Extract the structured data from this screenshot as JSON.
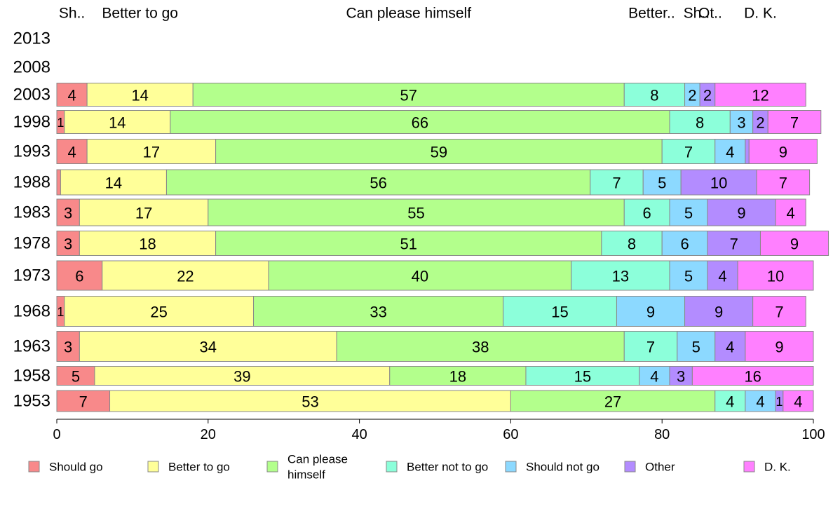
{
  "chart_data": {
    "type": "bar",
    "orientation": "horizontal",
    "stacked": true,
    "categories": [
      "2013",
      "2008",
      "2003",
      "1998",
      "1993",
      "1988",
      "1983",
      "1978",
      "1973",
      "1968",
      "1963",
      "1958",
      "1953"
    ],
    "series": [
      {
        "name": "Should go",
        "color": "#F8898A",
        "values": [
          null,
          null,
          4,
          1,
          4,
          0.5,
          3,
          3,
          6,
          1,
          3,
          5,
          7
        ]
      },
      {
        "name": "Better to go",
        "color": "#FFFF99",
        "values": [
          null,
          null,
          14,
          14,
          17,
          14,
          17,
          18,
          22,
          25,
          34,
          39,
          53
        ]
      },
      {
        "name": "Can please himself",
        "color": "#B3FF8C",
        "values": [
          null,
          null,
          57,
          66,
          59,
          56,
          55,
          51,
          40,
          33,
          38,
          18,
          27
        ]
      },
      {
        "name": "Better not to go",
        "color": "#8CFFDA",
        "values": [
          null,
          null,
          8,
          8,
          7,
          7,
          6,
          8,
          13,
          15,
          7,
          15,
          4
        ]
      },
      {
        "name": "Should not go",
        "color": "#8CD9FF",
        "values": [
          null,
          null,
          2,
          3,
          4,
          5,
          5,
          6,
          5,
          9,
          5,
          4,
          4
        ]
      },
      {
        "name": "Other",
        "color": "#B38CFF",
        "values": [
          null,
          null,
          2,
          2,
          0.5,
          10,
          9,
          7,
          4,
          9,
          4,
          3,
          1
        ]
      },
      {
        "name": "D. K.",
        "color": "#FF80FF",
        "values": [
          null,
          null,
          12,
          7,
          9,
          7,
          4,
          9,
          10,
          7,
          9,
          16,
          4
        ]
      }
    ],
    "value_labels": [
      [
        null,
        null,
        null,
        null,
        null,
        null,
        null
      ],
      [
        null,
        null,
        null,
        null,
        null,
        null,
        null
      ],
      [
        "4",
        "14",
        "57",
        "8",
        "2",
        "2",
        "12"
      ],
      [
        "1",
        "14",
        "66",
        "8",
        "3",
        "2",
        "7"
      ],
      [
        "4",
        "17",
        "59",
        "7",
        "4",
        "",
        "9"
      ],
      [
        "",
        "14",
        "56",
        "7",
        "5",
        "10",
        "7"
      ],
      [
        "3",
        "17",
        "55",
        "6",
        "5",
        "9",
        "4"
      ],
      [
        "3",
        "18",
        "51",
        "8",
        "6",
        "7",
        "9"
      ],
      [
        "6",
        "22",
        "40",
        "13",
        "5",
        "4",
        "10"
      ],
      [
        "1",
        "25",
        "33",
        "15",
        "9",
        "9",
        "7"
      ],
      [
        "3",
        "34",
        "38",
        "7",
        "5",
        "4",
        "9"
      ],
      [
        "5",
        "39",
        "18",
        "15",
        "4",
        "3",
        "16"
      ],
      [
        "7",
        "53",
        "27",
        "4",
        "4",
        "1",
        "4"
      ]
    ],
    "top_labels": [
      "Sh..",
      "Better to go",
      "Can please himself",
      "Better..",
      "Sh..",
      "Ot..",
      "D. K."
    ],
    "legend_labels": [
      "Should go",
      "Better to go",
      "Can please\nhimself",
      "Better not to go",
      "Should not go",
      "Other",
      "D. K."
    ],
    "xlim": [
      0,
      100
    ],
    "xticks": [
      0,
      20,
      40,
      60,
      80,
      100
    ],
    "legend_position": "bottom",
    "grid": false
  }
}
